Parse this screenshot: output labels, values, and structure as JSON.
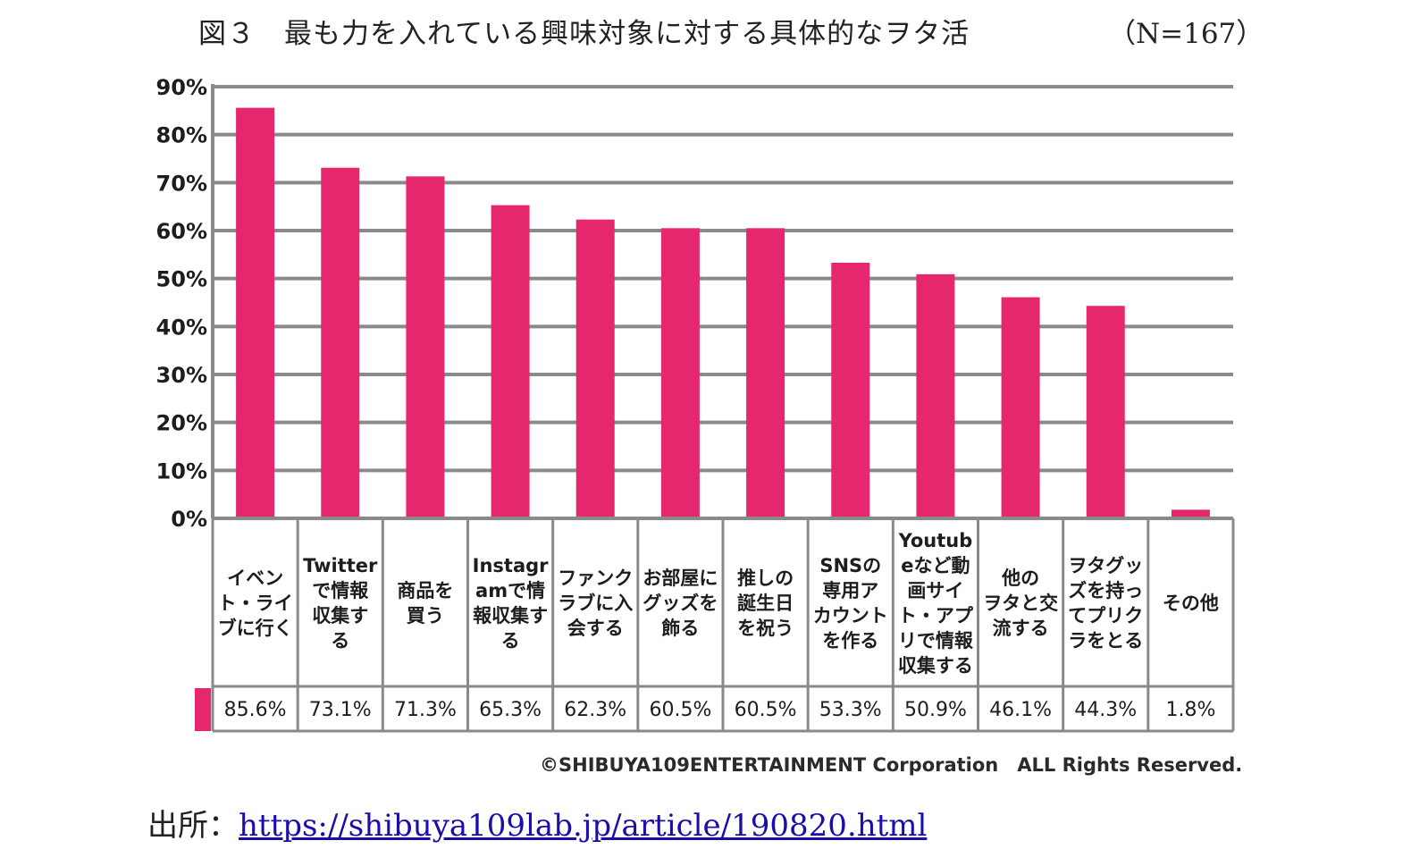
{
  "header": {
    "figure_title": "図３　最も力を入れている興味対象に対する具体的なヲタ活",
    "sample_size": "（N=167）"
  },
  "chart_data": {
    "type": "bar",
    "title": "図３　最も力を入れている興味対象に対する具体的なヲタ活",
    "categories": [
      [
        "イベン",
        "ト・ライ",
        "ブに行く"
      ],
      [
        "Twitter",
        "で情報",
        "収集す",
        "る"
      ],
      [
        "商品を",
        "買う"
      ],
      [
        "Instagr",
        "amで情",
        "報収集す",
        "る"
      ],
      [
        "ファンク",
        "ラブに入",
        "会する"
      ],
      [
        "お部屋に",
        "グッズを",
        "飾る"
      ],
      [
        "推しの",
        "誕生日",
        "を祝う"
      ],
      [
        "SNSの",
        "専用ア",
        "カウント",
        "を作る"
      ],
      [
        "Youtub",
        "eなど動",
        "画サイ",
        "ト・アプ",
        "リで情報",
        "収集する"
      ],
      [
        "他の",
        "ヲタと交",
        "流する"
      ],
      [
        "ヲタグッ",
        "ズを持っ",
        "てプリク",
        "ラをとる"
      ],
      [
        "その他"
      ]
    ],
    "values": [
      85.6,
      73.1,
      71.3,
      65.3,
      62.3,
      60.5,
      60.5,
      53.3,
      50.9,
      46.1,
      44.3,
      1.8
    ],
    "value_labels": [
      "85.6%",
      "73.1%",
      "71.3%",
      "65.3%",
      "62.3%",
      "60.5%",
      "60.5%",
      "53.3%",
      "50.9%",
      "46.1%",
      "44.3%",
      "1.8%"
    ],
    "y_ticks": [
      "0%",
      "10%",
      "20%",
      "30%",
      "40%",
      "50%",
      "60%",
      "70%",
      "80%",
      "90%"
    ],
    "ylim": [
      0,
      90
    ],
    "grid": true,
    "bar_color": "#e5286e",
    "legend": "none"
  },
  "footer": {
    "copyright": "©SHIBUYA109ENTERTAINMENT Corporation　ALL Rights Reserved.",
    "source_label": "出所：",
    "source_link": "https://shibuya109lab.jp/article/190820.html"
  }
}
